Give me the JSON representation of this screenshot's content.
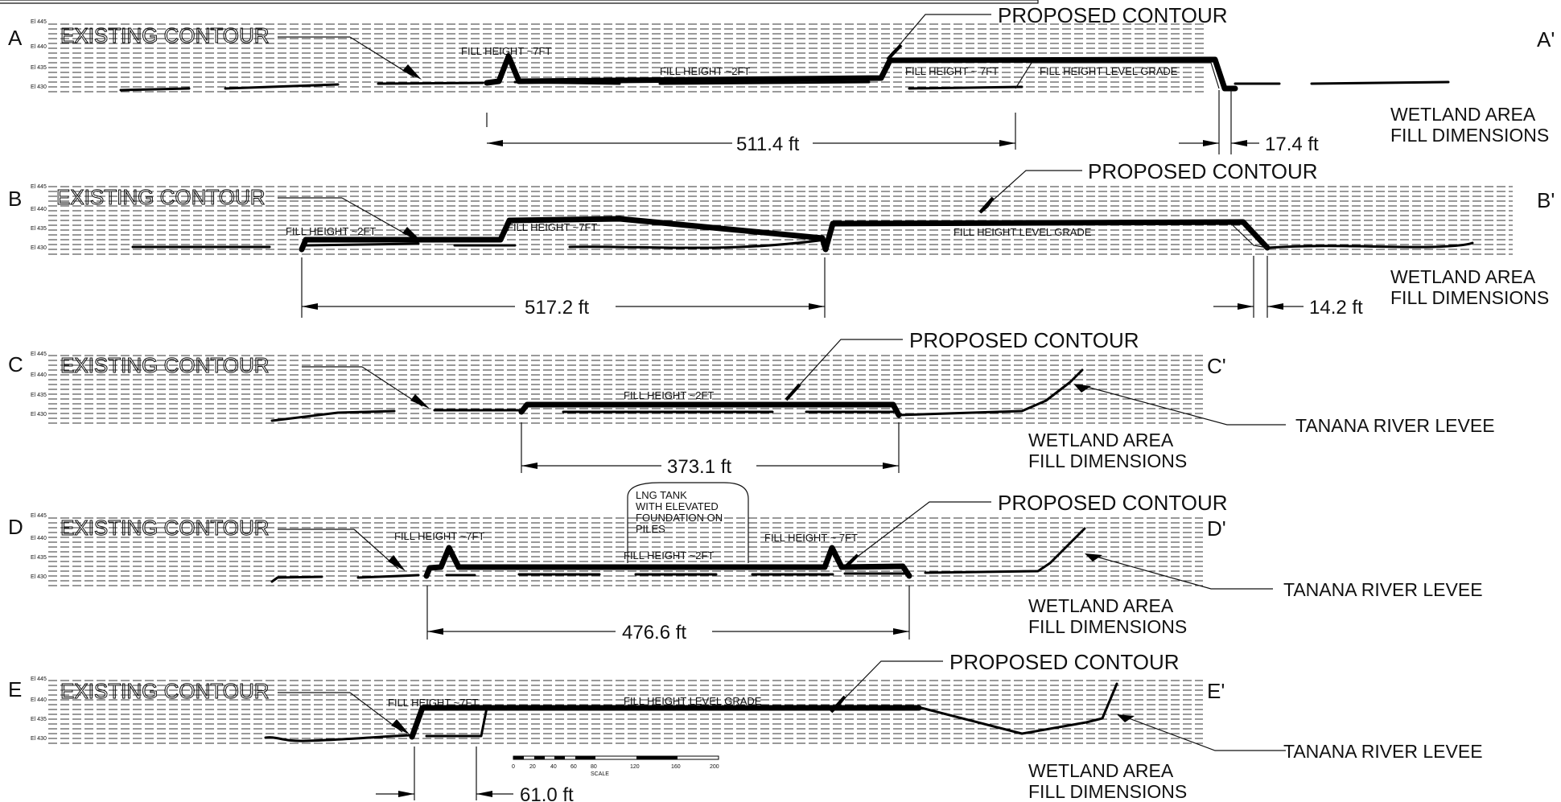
{
  "labels": {
    "existing_contour": "EXISTING CONTOUR",
    "proposed_contour": "PROPOSED CONTOUR",
    "wetland_line1": "WETLAND AREA",
    "wetland_line2": "FILL DIMENSIONS",
    "levee": "TANANA RIVER LEVEE",
    "fill_7": "FILL HEIGHT ~7FT",
    "fill_2": "FILL HEIGHT ~2FT",
    "fill_level": "FILL HEIGHT LEVEL GRADE",
    "fill_7_alt": "FILL HEIGHT ~ 7FT",
    "lng_1": "LNG TANK",
    "lng_2": "WITH ELEVATED",
    "lng_3": "FOUNDATION ON",
    "lng_4": "PILES"
  },
  "elevations": [
    "El 445",
    "El 440",
    "El 435",
    "El 430"
  ],
  "sections": {
    "a": {
      "start": "A",
      "end": "A'",
      "dim_main": "511.4  ft",
      "dim_small": "17.4  ft"
    },
    "b": {
      "start": "B",
      "end": "B'",
      "dim_main": "517.2  ft",
      "dim_small": "14.2  ft"
    },
    "c": {
      "start": "C",
      "end": "C'",
      "dim_main": "373.1  ft"
    },
    "d": {
      "start": "D",
      "end": "D'",
      "dim_main": "476.6  ft"
    },
    "e": {
      "start": "E",
      "end": "E'",
      "dim_small": "61.0  ft"
    }
  },
  "scale": {
    "label": "SCALE",
    "ticks": [
      "0",
      "20",
      "40",
      "60",
      "80",
      "120",
      "160",
      "200"
    ]
  }
}
